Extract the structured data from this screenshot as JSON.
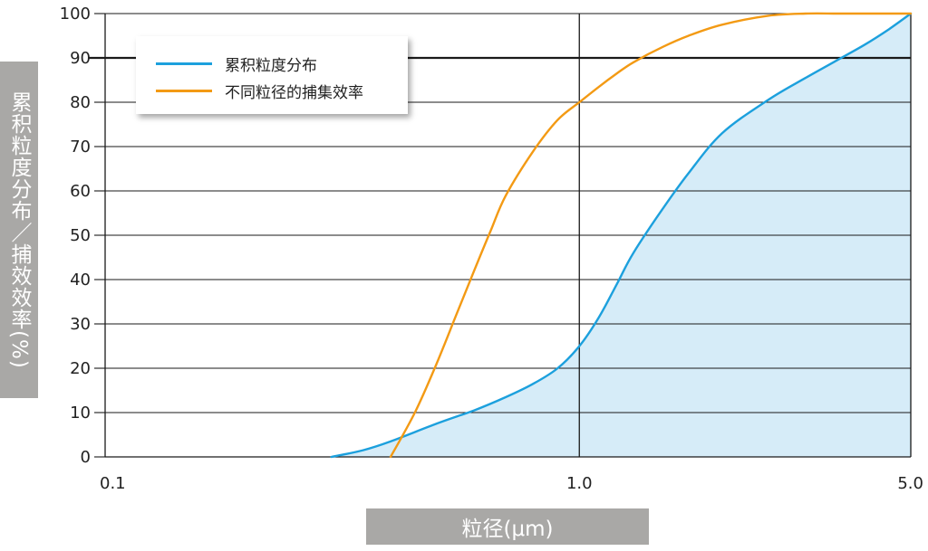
{
  "chart_data": {
    "type": "line",
    "ylabel": "累积粒度分布／捕效效率(%)",
    "xlabel": "粒径(μm)",
    "x_scale": "log",
    "xlim": [
      0.1,
      5.0
    ],
    "ylim": [
      0,
      100
    ],
    "x_ticks": [
      "0.1",
      "1.0",
      "5.0"
    ],
    "y_ticks": [
      "0",
      "10",
      "20",
      "30",
      "40",
      "50",
      "60",
      "70",
      "80",
      "90",
      "100"
    ],
    "grid": "horizontal lines at every 10, vertical line at 1.0",
    "legend_position": "top-left",
    "series": [
      {
        "name": "累积粒度分布",
        "color": "#1ca0dd",
        "fill": "#d6ecf8",
        "x": [
          0.3,
          0.35,
          0.4,
          0.5,
          0.6,
          0.7,
          0.8,
          0.9,
          1.0,
          1.1,
          1.2,
          1.3,
          1.5,
          1.7,
          2.0,
          2.5,
          3.0,
          3.5,
          4.0,
          4.5,
          5.0
        ],
        "y": [
          0,
          1.5,
          3.5,
          7.5,
          10.5,
          13.5,
          16.5,
          20,
          25,
          31.5,
          39,
          46,
          56,
          64,
          73,
          80.5,
          85.5,
          89.5,
          93,
          96.5,
          100
        ]
      },
      {
        "name": "不同粒径的捕集效率",
        "color": "#f39a14",
        "x": [
          0.4,
          0.45,
          0.5,
          0.55,
          0.6,
          0.65,
          0.7,
          0.8,
          0.9,
          1.0,
          1.1,
          1.2,
          1.3,
          1.5,
          1.7,
          2.0,
          2.5,
          3.0,
          3.5,
          4.0,
          5.0
        ],
        "y": [
          0,
          10,
          21,
          32,
          42,
          51,
          59,
          69,
          76,
          80,
          83.5,
          86.5,
          89,
          92.5,
          95,
          97.5,
          99.5,
          100,
          100,
          100,
          100
        ]
      }
    ]
  }
}
